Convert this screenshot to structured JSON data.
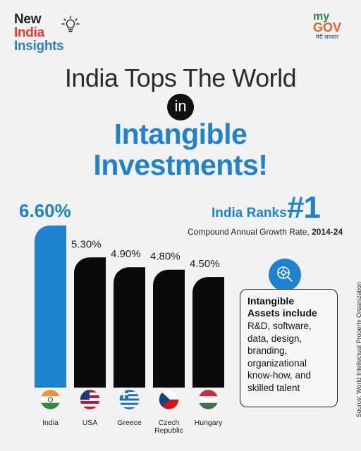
{
  "brand": {
    "logo_line1": "New",
    "logo_line2": "India",
    "logo_line3": "Insights",
    "partner_my": "my",
    "partner_gov": "GOV",
    "partner_tagline": "मेरी सरकार"
  },
  "headline": {
    "line1": "India Tops The World",
    "connector": "in",
    "line2": "Intangible",
    "line3": "Investments!"
  },
  "rank": {
    "text": "India Ranks",
    "value": "#1"
  },
  "subtitle": {
    "prefix": "Compound Annual Growth Rate, ",
    "period": "2014-24"
  },
  "chart_data": {
    "type": "bar",
    "title": "Compound Annual Growth Rate, 2014-24",
    "categories": [
      "India",
      "USA",
      "Greece",
      "Czech Republic",
      "Hungary"
    ],
    "category_lines": [
      [
        "India"
      ],
      [
        "USA"
      ],
      [
        "Greece"
      ],
      [
        "Czech",
        "Republic"
      ],
      [
        "Hungary"
      ]
    ],
    "values": [
      6.6,
      5.3,
      4.9,
      4.8,
      4.5
    ],
    "value_labels": [
      "6.60%",
      "5.30%",
      "4.90%",
      "4.80%",
      "4.50%"
    ],
    "unit": "%",
    "colors": [
      "#1d82cf",
      "#0a0a0a",
      "#0a0a0a",
      "#0a0a0a",
      "#0a0a0a"
    ],
    "flags": [
      "india-flag-icon",
      "usa-flag-icon",
      "greece-flag-icon",
      "czech-flag-icon",
      "hungary-flag-icon"
    ],
    "ylim": [
      0,
      6.6
    ],
    "grid": false,
    "legend": "none"
  },
  "info": {
    "title": "Intangible\nAssets include",
    "body": "R&D, software, data, design, branding, organizational know-how, and skilled talent",
    "icon": "search-gears-icon"
  },
  "source": "Source: World Intellectual Property Organization",
  "colors": {
    "accent": "#1d82cf",
    "background": "#f2f2f2",
    "bars": "#0a0a0a",
    "red": "#e63a2b"
  }
}
